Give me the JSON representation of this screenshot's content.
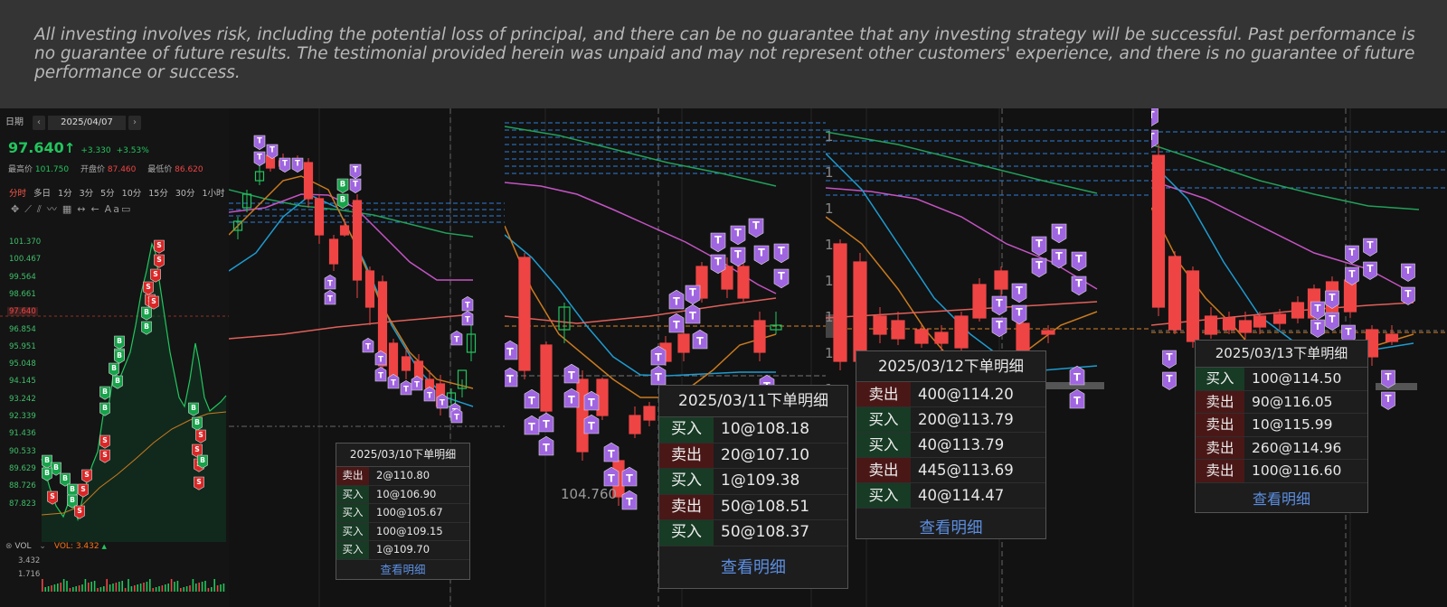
{
  "disclaimer": "All investing involves risk, including the potential loss of principal, and there can be no guarantee that any investing strategy will be successful. Past performance is no guarantee of future results. The testimonial provided herein was unpaid and may not represent other customers' experience, and there is no guarantee of future performance or success.",
  "panel1": {
    "date_label": "日期",
    "prev": "‹",
    "next": "›",
    "date": "2025/04/07",
    "price": "97.640",
    "price_arrow": "↑",
    "change": "+3.330",
    "change_pct": "+3.53%",
    "high_label": "最高价",
    "high": "101.750",
    "open_label": "开盘价",
    "open": "87.460",
    "low_label": "最低价",
    "low": "86.620",
    "timeframes": [
      "分时",
      "多日",
      "1分",
      "3分",
      "5分",
      "10分",
      "15分",
      "30分",
      "1小时"
    ],
    "axis_labels": [
      "101.370",
      "100.467",
      "99.564",
      "98.661",
      "97.640",
      "96.854",
      "95.951",
      "95.048",
      "94.145",
      "93.242",
      "92.339",
      "91.436",
      "90.533",
      "89.629",
      "88.726",
      "87.823"
    ],
    "vol_label": "VOL",
    "vol_value": "VOL: 3.432",
    "vol_axis": [
      "3.432",
      "1.716"
    ],
    "colors": {
      "up": "#22c55e",
      "down": "#ef4444",
      "accent": "#f97316"
    }
  },
  "popups": {
    "p2": {
      "title": "2025/03/10下单明细",
      "link": "查看明细",
      "rows": [
        {
          "type": "卖出",
          "side": "sell",
          "value": "2@110.80"
        },
        {
          "type": "买入",
          "side": "buy",
          "value": "10@106.90"
        },
        {
          "type": "买入",
          "side": "buy",
          "value": "100@105.67"
        },
        {
          "type": "买入",
          "side": "buy",
          "value": "100@109.15"
        },
        {
          "type": "买入",
          "side": "buy",
          "value": "1@109.70"
        }
      ]
    },
    "p3": {
      "title": "2025/03/11下单明细",
      "link": "查看明细",
      "rows": [
        {
          "type": "买入",
          "side": "buy",
          "value": "10@108.18"
        },
        {
          "type": "卖出",
          "side": "sell",
          "value": "20@107.10"
        },
        {
          "type": "买入",
          "side": "buy",
          "value": "1@109.38"
        },
        {
          "type": "卖出",
          "side": "sell",
          "value": "50@108.51"
        },
        {
          "type": "买入",
          "side": "buy",
          "value": "50@108.37"
        }
      ]
    },
    "p4": {
      "title": "2025/03/12下单明细",
      "link": "查看明细",
      "rows": [
        {
          "type": "卖出",
          "side": "sell",
          "value": "400@114.20"
        },
        {
          "type": "买入",
          "side": "buy",
          "value": "200@113.79"
        },
        {
          "type": "买入",
          "side": "buy",
          "value": "40@113.79"
        },
        {
          "type": "卖出",
          "side": "sell",
          "value": "445@113.69"
        },
        {
          "type": "买入",
          "side": "buy",
          "value": "40@114.47"
        }
      ]
    },
    "p5": {
      "title": "2025/03/13下单明细",
      "link": "查看明细",
      "rows": [
        {
          "type": "买入",
          "side": "buy",
          "value": "100@114.50"
        },
        {
          "type": "卖出",
          "side": "sell",
          "value": "90@116.05"
        },
        {
          "type": "卖出",
          "side": "sell",
          "value": "10@115.99"
        },
        {
          "type": "卖出",
          "side": "sell",
          "value": "260@114.96"
        },
        {
          "type": "卖出",
          "side": "sell",
          "value": "100@116.60"
        }
      ]
    }
  },
  "panel3_price": "104.760",
  "marker_letters": {
    "buy": "B",
    "sell": "S",
    "trade": "T"
  }
}
